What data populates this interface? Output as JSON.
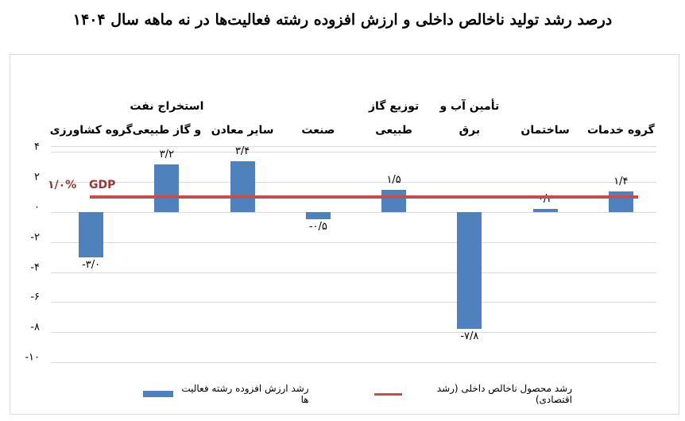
{
  "title": "درصد رشد تولید ناخالص داخلی و ارزش افزوده رشته فعالیت‌ها در نه ماهه سال ۱۴۰۴",
  "y_axis": {
    "ticks": [
      {
        "value": 4,
        "label": "۴"
      },
      {
        "value": 2,
        "label": "۲"
      },
      {
        "value": 0,
        "label": "۰"
      },
      {
        "value": -2,
        "label": "-۲"
      },
      {
        "value": -4,
        "label": "-۴"
      },
      {
        "value": -6,
        "label": "-۶"
      },
      {
        "value": -8,
        "label": "-۸"
      },
      {
        "value": -10,
        "label": "-۱۰"
      }
    ]
  },
  "categories": [
    {
      "line1": "",
      "line2": "گروه کشاورزی",
      "value": -3.0,
      "label": "-۳/۰"
    },
    {
      "line1": "استخراج نفت",
      "line2": "و گاز طبیعی",
      "value": 3.2,
      "label": "۳/۲"
    },
    {
      "line1": "",
      "line2": "سایر معادن",
      "value": 3.4,
      "label": "۳/۴"
    },
    {
      "line1": "",
      "line2": "صنعت",
      "value": -0.5,
      "label": "-۰/۵"
    },
    {
      "line1": "توزیع گاز",
      "line2": "طبیعی",
      "value": 1.5,
      "label": "۱/۵"
    },
    {
      "line1": "تأمین آب و",
      "line2": "برق",
      "value": -7.8,
      "label": "-۷/۸"
    },
    {
      "line1": "",
      "line2": "ساختمان",
      "value": 0.2,
      "label": "۰/۲"
    },
    {
      "line1": "",
      "line2": "گروه خدمات",
      "value": 1.4,
      "label": "۱/۴"
    }
  ],
  "gdp": {
    "value": 1.0,
    "label_pct": "۱/۰%",
    "label_text": "GDP"
  },
  "legend": {
    "gdp_line": "رشد محصول ناخالص داخلی (رشد اقتصادی)",
    "bars": "رشد ارزش افزوده رشته فعالیت ها"
  },
  "colors": {
    "bar": "#4f81bd",
    "gdp_line": "#c0504d",
    "gdp_label": "#953735",
    "grid": "#d9d9d9"
  },
  "chart_data": {
    "type": "bar",
    "title": "درصد رشد تولید ناخالص داخلی و ارزش افزوده رشته فعالیت‌ها در نه ماهه سال ۱۴۰۴",
    "categories": [
      "گروه کشاورزی",
      "استخراج نفت و گاز طبیعی",
      "سایر معادن",
      "صنعت",
      "توزیع گاز طبیعی",
      "تأمین آب و برق",
      "ساختمان",
      "گروه خدمات"
    ],
    "series": [
      {
        "name": "رشد ارزش افزوده رشته فعالیت ها",
        "type": "bar",
        "values": [
          -3.0,
          3.2,
          3.4,
          -0.5,
          1.5,
          -7.8,
          0.2,
          1.4
        ]
      },
      {
        "name": "رشد محصول ناخالص داخلی (رشد اقتصادی)",
        "type": "line",
        "values": [
          1.0,
          1.0,
          1.0,
          1.0,
          1.0,
          1.0,
          1.0,
          1.0
        ]
      }
    ],
    "annotations": [
      "GDP ۱/۰%"
    ],
    "xlabel": "",
    "ylabel": "",
    "ylim": [
      -10,
      4
    ],
    "yticks": [
      4,
      2,
      0,
      -2,
      -4,
      -6,
      -8,
      -10
    ],
    "grid": true,
    "legend_position": "bottom"
  }
}
